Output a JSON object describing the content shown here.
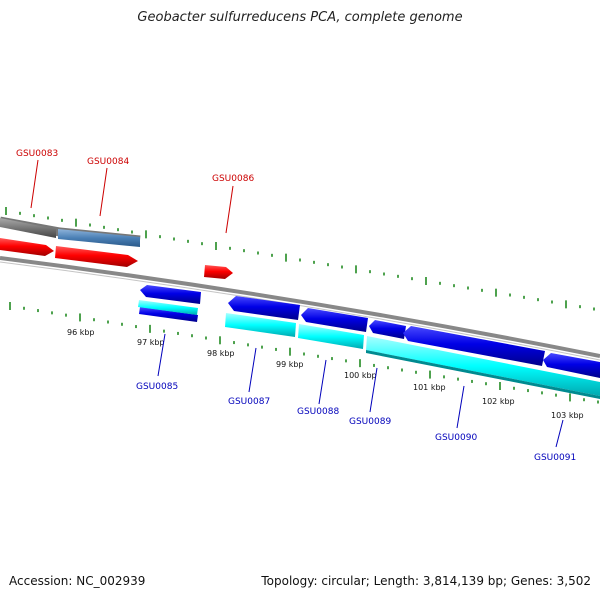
{
  "title": "Geobacter sulfurreducens PCA, complete genome",
  "accession": "Accession: NC_002939",
  "summary": "Topology: circular; Length: 3,814,139 bp; Genes: 3,502",
  "colors": {
    "backbone": "#888888",
    "tick": "#228b22",
    "forward_gene": "#ff0000",
    "reverse_gene": "#0000e6",
    "cyan_feature": "#00ffff",
    "grey_feature": "#777777",
    "steel_feature": "#4a7fb5",
    "label_forward": "#cc0000",
    "label_reverse": "#0000bb"
  },
  "scale_labels": [
    "96 kbp",
    "97 kbp",
    "98 kbp",
    "99 kbp",
    "100 kbp",
    "101 kbp",
    "102 kbp",
    "103 kbp"
  ],
  "gene_labels_forward": [
    "GSU0083",
    "GSU0084",
    "GSU0086"
  ],
  "gene_labels_reverse": [
    "GSU0085",
    "GSU0087",
    "GSU0088",
    "GSU0089",
    "GSU0090",
    "GSU0091"
  ]
}
